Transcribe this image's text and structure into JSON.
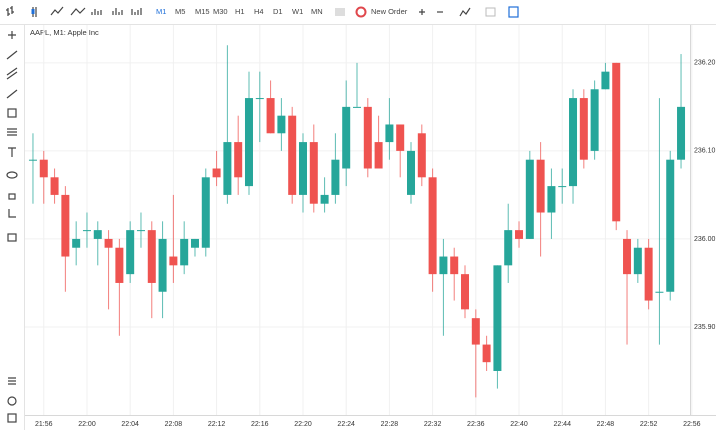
{
  "toolbar": {
    "timeframes": [
      "M1",
      "M5",
      "M15",
      "M30",
      "H1",
      "H4",
      "D1",
      "W1",
      "MN"
    ],
    "new_order": "New Order"
  },
  "chart_data": {
    "type": "candlestick",
    "title": "AAPL, M1: Apple Inc",
    "open": [
      236.09,
      236.09,
      236.07,
      236.05,
      235.99,
      236.01,
      236.0,
      236.0,
      235.99,
      235.96,
      236.01,
      236.01,
      235.94,
      235.98,
      235.97,
      235.99,
      235.99,
      236.08,
      236.05,
      236.11,
      236.06,
      236.16,
      236.16,
      236.12,
      236.14,
      236.05,
      236.11,
      236.04,
      236.05,
      236.08,
      236.15,
      236.15,
      236.11,
      236.11,
      236.13,
      236.05,
      236.12,
      236.07,
      235.96,
      235.98,
      235.96,
      235.91,
      235.88,
      235.85,
      235.97,
      236.01,
      236.0,
      236.09,
      236.03,
      236.06,
      236.06,
      236.16,
      236.1,
      236.17,
      236.2,
      236.0,
      235.96,
      235.99,
      235.94,
      235.94,
      236.09
    ],
    "high": [
      236.12,
      236.1,
      236.08,
      236.06,
      236.02,
      236.03,
      236.02,
      236.01,
      236.0,
      236.02,
      236.03,
      236.02,
      236.02,
      236.05,
      236.02,
      236.0,
      236.08,
      236.1,
      236.22,
      236.14,
      236.19,
      236.19,
      236.18,
      236.16,
      236.15,
      236.12,
      236.13,
      236.07,
      236.12,
      236.18,
      236.2,
      236.16,
      236.14,
      236.16,
      236.13,
      236.11,
      236.13,
      236.08,
      236.0,
      235.99,
      235.97,
      235.92,
      235.89,
      235.97,
      236.04,
      236.02,
      236.1,
      236.11,
      236.08,
      236.08,
      236.17,
      236.17,
      236.18,
      236.2,
      236.2,
      236.01,
      236.0,
      236.0,
      236.16,
      236.1,
      236.21
    ],
    "low": [
      236.04,
      236.04,
      236.04,
      235.94,
      235.97,
      235.99,
      235.97,
      235.92,
      235.89,
      235.95,
      235.99,
      235.91,
      235.91,
      235.95,
      235.96,
      235.98,
      235.98,
      236.06,
      236.04,
      236.05,
      236.05,
      236.11,
      236.12,
      236.1,
      236.04,
      236.03,
      236.03,
      236.03,
      236.04,
      236.06,
      236.15,
      236.07,
      236.08,
      236.09,
      236.07,
      236.04,
      236.06,
      235.94,
      235.89,
      235.93,
      235.91,
      235.82,
      235.85,
      235.83,
      235.95,
      235.99,
      236.0,
      235.98,
      236.0,
      236.04,
      236.04,
      236.08,
      236.09,
      236.17,
      236.01,
      235.88,
      235.95,
      235.92,
      235.88,
      235.93,
      236.08
    ],
    "close": [
      236.09,
      236.07,
      236.05,
      235.98,
      236.0,
      236.01,
      236.01,
      235.99,
      235.95,
      236.01,
      236.01,
      235.95,
      236.0,
      235.97,
      236.0,
      236.0,
      236.07,
      236.07,
      236.11,
      236.07,
      236.16,
      236.16,
      236.12,
      236.14,
      236.05,
      236.11,
      236.04,
      236.05,
      236.09,
      236.15,
      236.15,
      236.08,
      236.08,
      236.13,
      236.1,
      236.1,
      236.07,
      235.96,
      235.98,
      235.96,
      235.92,
      235.88,
      235.86,
      235.97,
      236.01,
      236.0,
      236.09,
      236.03,
      236.06,
      236.06,
      236.16,
      236.09,
      236.17,
      236.19,
      236.02,
      235.96,
      235.99,
      235.93,
      235.94,
      236.09,
      236.15
    ],
    "up_color": "#26a69a",
    "down_color": "#ef5350",
    "xlim": [
      -0.83,
      60.83
    ],
    "xticks": [
      {
        "value": 1,
        "label": "21:56"
      },
      {
        "value": 5,
        "label": "22:00"
      },
      {
        "value": 9,
        "label": "22:04"
      },
      {
        "value": 13,
        "label": "22:08"
      },
      {
        "value": 17,
        "label": "22:12"
      },
      {
        "value": 21,
        "label": "22:16"
      },
      {
        "value": 25,
        "label": "22:20"
      },
      {
        "value": 29,
        "label": "22:24"
      },
      {
        "value": 33,
        "label": "22:28"
      },
      {
        "value": 37,
        "label": "22:32"
      },
      {
        "value": 41,
        "label": "22:36"
      },
      {
        "value": 45,
        "label": "22:40"
      },
      {
        "value": 49,
        "label": "22:44"
      },
      {
        "value": 53,
        "label": "22:48"
      },
      {
        "value": 57,
        "label": "22:52"
      },
      {
        "value": 61,
        "label": "22:56"
      }
    ],
    "ylim": [
      235.8,
      236.243
    ],
    "yticks": [
      {
        "value": 235.9,
        "label": "235.90"
      },
      {
        "value": 236.0,
        "label": "236.00"
      },
      {
        "value": 236.1,
        "label": "236.10"
      },
      {
        "value": 236.2,
        "label": "236.20"
      }
    ],
    "grid": true
  }
}
